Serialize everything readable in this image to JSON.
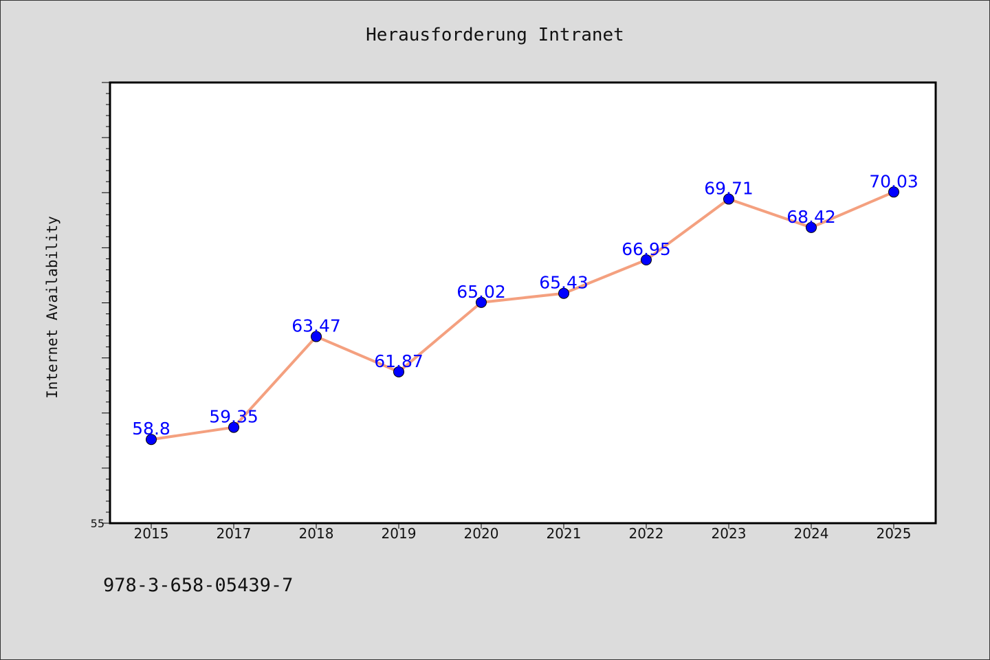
{
  "title": "Herausforderung Intranet",
  "footer_text": "978-3-658-05439-7",
  "colors": {
    "background": "#dcdcdc",
    "plot_background": "#ffffff",
    "line": "#f4a07f",
    "marker": "#0000ff",
    "data_label": "#0000ff"
  },
  "chart_data": {
    "type": "line",
    "title": "Herausforderung Intranet",
    "xlabel": "",
    "ylabel": "Internet Availability",
    "categories": [
      "2015",
      "2017",
      "2018",
      "2019",
      "2020",
      "2021",
      "2022",
      "2023",
      "2024",
      "2025"
    ],
    "values": [
      58.8,
      59.35,
      63.47,
      61.87,
      65.02,
      65.43,
      66.95,
      69.71,
      68.42,
      70.03
    ],
    "data_labels": [
      "58.8",
      "59.35",
      "63.47",
      "61.87",
      "65.02",
      "65.43",
      "66.95",
      "69.71",
      "68.42",
      "70.03"
    ],
    "ylim": [
      55,
      75
    ],
    "y_tick_labels": [
      "55"
    ],
    "grid": false,
    "legend": "none"
  }
}
